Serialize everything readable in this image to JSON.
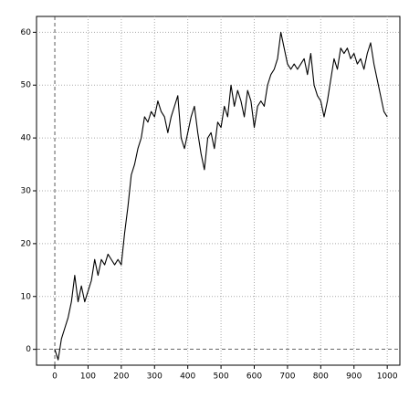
{
  "chart_data": {
    "type": "line",
    "x": [
      0,
      10,
      20,
      30,
      40,
      50,
      60,
      70,
      80,
      90,
      100,
      110,
      120,
      130,
      140,
      150,
      160,
      170,
      180,
      190,
      200,
      210,
      220,
      230,
      240,
      250,
      260,
      270,
      280,
      290,
      300,
      310,
      320,
      330,
      340,
      350,
      360,
      370,
      380,
      390,
      400,
      410,
      420,
      430,
      440,
      450,
      460,
      470,
      480,
      490,
      500,
      510,
      520,
      530,
      540,
      550,
      560,
      570,
      580,
      590,
      600,
      610,
      620,
      630,
      640,
      650,
      660,
      670,
      680,
      690,
      700,
      710,
      720,
      730,
      740,
      750,
      760,
      770,
      780,
      790,
      800,
      810,
      820,
      830,
      840,
      850,
      860,
      870,
      880,
      890,
      900,
      910,
      920,
      930,
      940,
      950,
      960,
      970,
      980,
      990,
      1000
    ],
    "values": [
      0,
      -2,
      2,
      4,
      6,
      9,
      14,
      9,
      12,
      9,
      11,
      13,
      17,
      14,
      17,
      16,
      18,
      17,
      16,
      17,
      16,
      22,
      27,
      33,
      35,
      38,
      40,
      44,
      43,
      45,
      44,
      47,
      45,
      44,
      41,
      44,
      46,
      48,
      40,
      38,
      41,
      44,
      46,
      41,
      37,
      34,
      40,
      41,
      38,
      43,
      42,
      46,
      44,
      50,
      46,
      49,
      47,
      44,
      49,
      47,
      42,
      46,
      47,
      46,
      50,
      52,
      53,
      55,
      60,
      57,
      54,
      53,
      54,
      53,
      54,
      55,
      52,
      56,
      50,
      48,
      47,
      44,
      47,
      51,
      55,
      53,
      57,
      56,
      57,
      55,
      56,
      54,
      55,
      53,
      56,
      58,
      54,
      51,
      48,
      45,
      44
    ],
    "color": "#000000",
    "xlim": [
      -55,
      1038
    ],
    "ylim": [
      -3,
      63
    ],
    "xticks": [
      0,
      100,
      200,
      300,
      400,
      500,
      600,
      700,
      800,
      900,
      1000
    ],
    "yticks": [
      0,
      10,
      20,
      30,
      40,
      50,
      60
    ],
    "grid": true
  }
}
